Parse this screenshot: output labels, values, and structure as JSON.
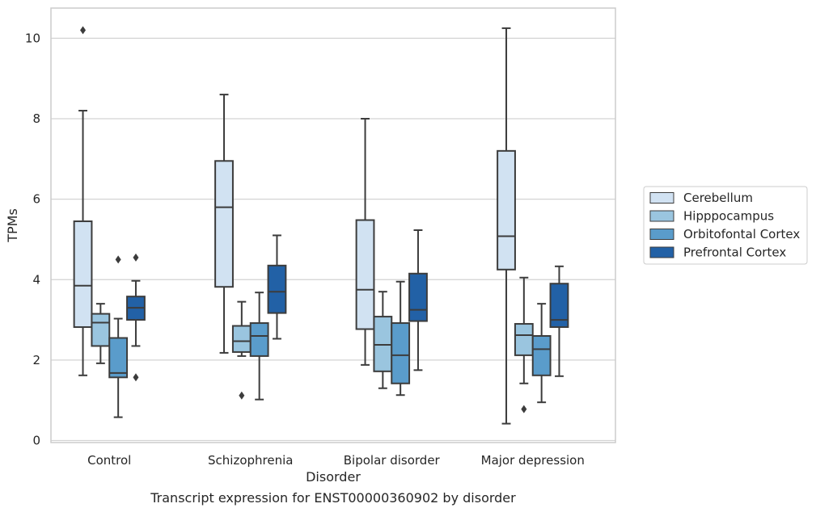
{
  "chart_data": {
    "type": "box",
    "title": "",
    "caption": "Transcript expression for ENST00000360902 by disorder",
    "xlabel": "Disorder",
    "ylabel": "TPMs",
    "ylim": [
      -0.05,
      10.75
    ],
    "yticks": [
      0,
      2,
      4,
      6,
      8,
      10
    ],
    "grid": true,
    "legend_placement": "right",
    "categories": [
      "Control",
      "Schizophrenia",
      "Bipolar disorder",
      "Major depression"
    ],
    "series": [
      {
        "name": "Cerebellum",
        "color": "#d1e2f2",
        "boxes": [
          {
            "q1": 2.82,
            "median": 3.85,
            "q3": 5.45,
            "whisker_low": 1.62,
            "whisker_high": 8.2,
            "outliers": [
              10.2
            ]
          },
          {
            "q1": 3.82,
            "median": 5.8,
            "q3": 6.95,
            "whisker_low": 2.18,
            "whisker_high": 8.6,
            "outliers": []
          },
          {
            "q1": 2.77,
            "median": 3.75,
            "q3": 5.48,
            "whisker_low": 1.88,
            "whisker_high": 8.0,
            "outliers": []
          },
          {
            "q1": 4.25,
            "median": 5.08,
            "q3": 7.2,
            "whisker_low": 0.42,
            "whisker_high": 10.25,
            "outliers": []
          }
        ]
      },
      {
        "name": "Hipppocampus",
        "color": "#9ac5df",
        "boxes": [
          {
            "q1": 2.35,
            "median": 2.93,
            "q3": 3.15,
            "whisker_low": 1.92,
            "whisker_high": 3.4,
            "outliers": []
          },
          {
            "q1": 2.2,
            "median": 2.47,
            "q3": 2.85,
            "whisker_low": 2.1,
            "whisker_high": 3.45,
            "outliers": [
              1.12
            ]
          },
          {
            "q1": 1.72,
            "median": 2.38,
            "q3": 3.08,
            "whisker_low": 1.3,
            "whisker_high": 3.7,
            "outliers": []
          },
          {
            "q1": 2.12,
            "median": 2.62,
            "q3": 2.9,
            "whisker_low": 1.42,
            "whisker_high": 4.05,
            "outliers": [
              0.78
            ]
          }
        ]
      },
      {
        "name": "Orbitofontal Cortex",
        "color": "#5a9ccb",
        "boxes": [
          {
            "q1": 1.57,
            "median": 1.68,
            "q3": 2.55,
            "whisker_low": 0.58,
            "whisker_high": 3.03,
            "outliers": [
              4.5
            ]
          },
          {
            "q1": 2.1,
            "median": 2.6,
            "q3": 2.92,
            "whisker_low": 1.02,
            "whisker_high": 3.68,
            "outliers": []
          },
          {
            "q1": 1.42,
            "median": 2.12,
            "q3": 2.92,
            "whisker_low": 1.13,
            "whisker_high": 3.95,
            "outliers": []
          },
          {
            "q1": 1.62,
            "median": 2.27,
            "q3": 2.6,
            "whisker_low": 0.95,
            "whisker_high": 3.4,
            "outliers": []
          }
        ]
      },
      {
        "name": "Prefrontal Cortex",
        "color": "#2261a6",
        "boxes": [
          {
            "q1": 3.0,
            "median": 3.3,
            "q3": 3.58,
            "whisker_low": 2.35,
            "whisker_high": 3.97,
            "outliers": [
              4.55,
              1.57
            ]
          },
          {
            "q1": 3.17,
            "median": 3.7,
            "q3": 4.35,
            "whisker_low": 2.53,
            "whisker_high": 5.1,
            "outliers": []
          },
          {
            "q1": 2.97,
            "median": 3.25,
            "q3": 4.15,
            "whisker_low": 1.75,
            "whisker_high": 5.23,
            "outliers": []
          },
          {
            "q1": 2.82,
            "median": 3.0,
            "q3": 3.9,
            "whisker_low": 1.6,
            "whisker_high": 4.33,
            "outliers": []
          }
        ]
      }
    ]
  }
}
